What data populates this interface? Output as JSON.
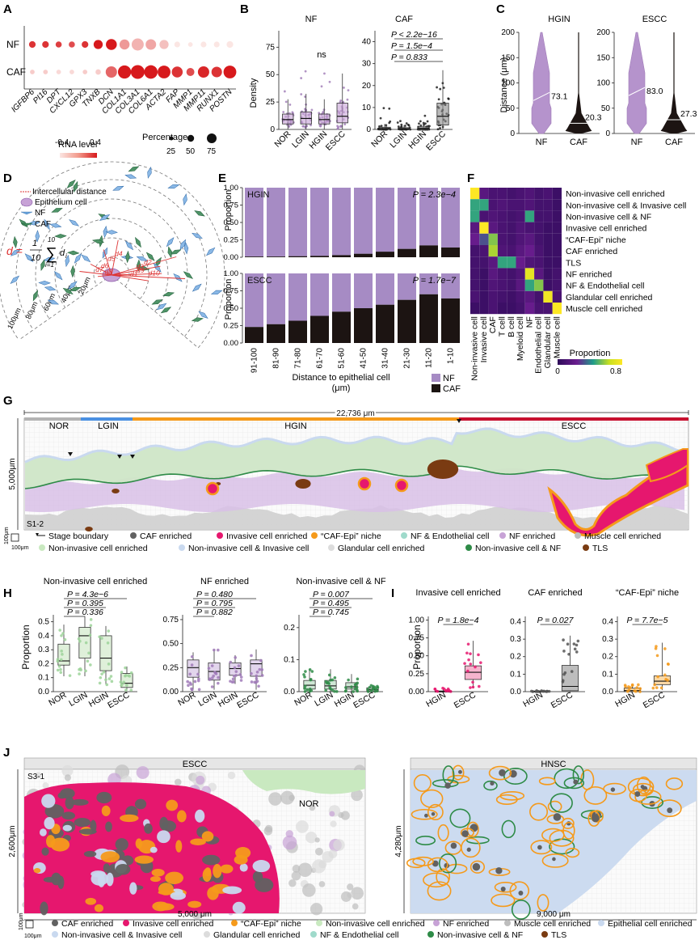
{
  "panels": {
    "A": {
      "label": "A",
      "rows": [
        "NF",
        "CAF"
      ],
      "genes": [
        "IGFBP6",
        "PI16",
        "DPT",
        "CXCL12",
        "GPX3",
        "TNXB",
        "DCN",
        "COL1A1",
        "COL3A1",
        "COL6A1",
        "ACTA2",
        "FAP",
        "MMP1",
        "MMP11",
        "RUNX1",
        "POSTN"
      ],
      "nf_level": [
        0.3,
        0.3,
        0.25,
        0.2,
        0.3,
        0.4,
        0.5,
        -0.1,
        -0.2,
        -0.15,
        -0.25,
        -0.4,
        -0.4,
        -0.4,
        -0.4,
        -0.4
      ],
      "nf_pct": [
        15,
        15,
        12,
        12,
        15,
        35,
        55,
        45,
        70,
        50,
        35,
        10,
        5,
        10,
        10,
        15
      ],
      "caf_level": [
        -0.3,
        -0.3,
        -0.35,
        -0.35,
        -0.3,
        -0.3,
        0.1,
        0.45,
        0.5,
        0.45,
        0.4,
        0.3,
        0.2,
        0.35,
        0.3,
        0.5
      ],
      "caf_pct": [
        5,
        5,
        5,
        5,
        5,
        8,
        60,
        85,
        95,
        90,
        80,
        55,
        25,
        60,
        50,
        80
      ],
      "legend_level_title": "RNA level",
      "legend_level_ticks": [
        "-0.4",
        "0.4"
      ],
      "legend_pct_title": "Percentage",
      "legend_pct_values": [
        "25",
        "50",
        "75"
      ]
    },
    "B": {
      "label": "B",
      "ylabel": "Density",
      "groups": [
        "NOR",
        "LGIN",
        "HGIN",
        "ESCC"
      ],
      "nf": {
        "title": "NF",
        "ylim": [
          0,
          90
        ],
        "ticks": [
          "0",
          "25",
          "50",
          "75"
        ],
        "medians": [
          9,
          10,
          9,
          12
        ],
        "q1": [
          5,
          5,
          5,
          6
        ],
        "q3": [
          14,
          16,
          14,
          24
        ],
        "annotation": "ns"
      },
      "caf": {
        "title": "CAF",
        "ylim": [
          0,
          45
        ],
        "ticks": [
          "0",
          "10",
          "20",
          "30",
          "40"
        ],
        "medians": [
          0.4,
          0.3,
          0.5,
          6
        ],
        "q1": [
          0,
          0,
          0,
          2
        ],
        "q3": [
          1,
          0.8,
          1.2,
          12
        ],
        "pvals": [
          "P < 2.2e−16",
          "P = 1.5e−4",
          "P = 0.833"
        ]
      }
    },
    "C": {
      "label": "C",
      "ylabel": "Distance (μm)",
      "ticks": [
        "0",
        "50",
        "100",
        "150",
        "200"
      ],
      "panels": [
        {
          "title": "HGIN",
          "nf_median": "73.1",
          "caf_median": "20.3",
          "nf_val": 73.1,
          "caf_val": 20.3
        },
        {
          "title": "ESCC",
          "nf_median": "83.0",
          "caf_median": "27.3",
          "nf_val": 83.0,
          "caf_val": 27.3
        }
      ],
      "xcats": [
        "NF",
        "CAF"
      ]
    },
    "D": {
      "label": "D",
      "legend": [
        "Intercellular distance",
        "Epithelium cell",
        "NF",
        "CAF"
      ],
      "formula_lhs": "d =",
      "rings": [
        "20μm",
        "40μm",
        "60μm",
        "80μm",
        "100μm"
      ],
      "dlabels": [
        "d1",
        "d2",
        "d3",
        "d4",
        "d5",
        "d6",
        "d7",
        "d8",
        "d9",
        "d10"
      ]
    },
    "E": {
      "label": "E",
      "ylabel": "Proportion",
      "xlabel": "Distance to epithelial cell",
      "xlabel_unit": "(μm)",
      "bins": [
        "91-100",
        "81-90",
        "71-80",
        "61-70",
        "51-60",
        "41-50",
        "31-40",
        "21-30",
        "11-20",
        "1-10"
      ],
      "hgin": {
        "title": "HGIN",
        "p": "P = 2.3e−4",
        "caf": [
          0.01,
          0.01,
          0.015,
          0.02,
          0.03,
          0.05,
          0.08,
          0.12,
          0.17,
          0.14
        ]
      },
      "escc": {
        "title": "ESCC",
        "p": "P = 1.7e−7",
        "caf": [
          0.23,
          0.27,
          0.32,
          0.39,
          0.45,
          0.5,
          0.55,
          0.62,
          0.7,
          0.64
        ]
      },
      "ticks": [
        "0.00",
        "0.25",
        "0.50",
        "0.75",
        "1.00"
      ],
      "legend": [
        "NF",
        "CAF"
      ]
    },
    "F": {
      "label": "F",
      "rows": [
        "Non-invasive cell enriched",
        "Non-invasive cell & Invasive cell",
        "Non-invasive cell & NF",
        "Invasive cell enriched",
        "“CAF-Epi” niche",
        "CAF enriched",
        "TLS",
        "NF enriched",
        "NF & Endothelial cell",
        "Glandular cell enriched",
        "Muscle cell enriched"
      ],
      "cols": [
        "Non-invasive cell",
        "Invasive cell",
        "CAF",
        "T cell",
        "B cell",
        "Myeloid cell",
        "NF",
        "Endothelial cell",
        "Glandular cell",
        "Muscle cell"
      ],
      "matrix": [
        [
          0.85,
          0.15,
          0.1,
          0.1,
          0.08,
          0.1,
          0.12,
          0.08,
          0.1,
          0.05
        ],
        [
          0.45,
          0.45,
          0.1,
          0.12,
          0.1,
          0.1,
          0.12,
          0.08,
          0.08,
          0.05
        ],
        [
          0.45,
          0.1,
          0.12,
          0.1,
          0.08,
          0.1,
          0.45,
          0.08,
          0.08,
          0.05
        ],
        [
          0.15,
          0.85,
          0.15,
          0.1,
          0.08,
          0.12,
          0.1,
          0.08,
          0.05,
          0.05
        ],
        [
          0.2,
          0.3,
          0.55,
          0.1,
          0.08,
          0.12,
          0.15,
          0.08,
          0.05,
          0.05
        ],
        [
          0.08,
          0.1,
          0.6,
          0.12,
          0.1,
          0.15,
          0.2,
          0.1,
          0.05,
          0.05
        ],
        [
          0.08,
          0.08,
          0.15,
          0.45,
          0.45,
          0.2,
          0.12,
          0.1,
          0.05,
          0.05
        ],
        [
          0.08,
          0.05,
          0.15,
          0.1,
          0.08,
          0.12,
          0.75,
          0.15,
          0.05,
          0.08
        ],
        [
          0.08,
          0.05,
          0.12,
          0.1,
          0.08,
          0.15,
          0.45,
          0.55,
          0.05,
          0.08
        ],
        [
          0.1,
          0.05,
          0.1,
          0.08,
          0.06,
          0.1,
          0.15,
          0.08,
          0.8,
          0.1
        ],
        [
          0.05,
          0.05,
          0.1,
          0.05,
          0.05,
          0.08,
          0.2,
          0.1,
          0.1,
          0.85
        ]
      ],
      "legend_title": "Proportion",
      "legend_ticks": [
        "0",
        "0.8"
      ]
    },
    "G": {
      "label": "G",
      "scale_width": "22,736 μm",
      "scale_height": "5,000μm",
      "sample": "S1-2",
      "stages": [
        "NOR",
        "LGIN",
        "HGIN",
        "ESCC"
      ],
      "scale_box": "100μm",
      "scale_box2": "100μm",
      "legend": [
        {
          "label": "Stage boundary",
          "color": "#222222"
        },
        {
          "label": "CAF enriched",
          "color": "#616161"
        },
        {
          "label": "Invasive cell enriched",
          "color": "#e6176e"
        },
        {
          "label": "“CAF-Epi” niche",
          "color": "#f59a1b"
        },
        {
          "label": "NF & Endothelial cell",
          "color": "#9fdacb"
        },
        {
          "label": "NF enriched",
          "color": "#c7a2d6"
        },
        {
          "label": "Muscle cell enriched",
          "color": "#bdbdbd"
        },
        {
          "label": "Non-invasive cell enriched",
          "color": "#c9e9c0"
        },
        {
          "label": "Non-invasive cell & Invasive cell",
          "color": "#c9d9ef"
        },
        {
          "label": "Glandular cell enriched",
          "color": "#dcdcdc"
        },
        {
          "label": "Non-invasive cell & NF",
          "color": "#2e8b47"
        },
        {
          "label": "TLS",
          "color": "#7a3b12"
        }
      ]
    },
    "H": {
      "label": "H",
      "ylabel": "Proportion",
      "groups": [
        "NOR",
        "LGIN",
        "HGIN",
        "ESCC"
      ],
      "plots": [
        {
          "title": "Non-invasive cell enriched",
          "ticks": [
            "0.0",
            "0.1",
            "0.2",
            "0.3",
            "0.4",
            "0.5"
          ],
          "ymax": 0.55,
          "pvals": [
            "P = 4.3e−6",
            "P = 0.395",
            "P = 0.336"
          ],
          "q1": [
            0.19,
            0.24,
            0.15,
            0.03
          ],
          "med": [
            0.22,
            0.4,
            0.24,
            0.06
          ],
          "q3": [
            0.34,
            0.46,
            0.4,
            0.13
          ],
          "lo": [
            0.11,
            0.11,
            0.05,
            0.01
          ],
          "hi": [
            0.48,
            0.54,
            0.47,
            0.18
          ],
          "color": "#9ed39a",
          "fill": "#dff0da"
        },
        {
          "title": "NF enriched",
          "ticks": [
            "0.00",
            "0.25",
            "0.50",
            "0.75"
          ],
          "ymax": 0.8,
          "pvals": [
            "P = 0.480",
            "P = 0.795",
            "P = 0.882"
          ],
          "q1": [
            0.15,
            0.12,
            0.17,
            0.16
          ],
          "med": [
            0.25,
            0.21,
            0.24,
            0.29
          ],
          "q3": [
            0.33,
            0.3,
            0.3,
            0.33
          ],
          "lo": [
            0.02,
            0.02,
            0.08,
            0.02
          ],
          "hi": [
            0.41,
            0.44,
            0.38,
            0.44
          ],
          "color": "#a07ab8",
          "fill": "#e2d5ec"
        },
        {
          "title": "Non-invasive cell & NF",
          "ticks": [
            "0.0",
            "0.1",
            "0.2"
          ],
          "ymax": 0.24,
          "pvals": [
            "P = 0.007",
            "P = 0.495",
            "P = 0.745"
          ],
          "q1": [
            0.008,
            0.008,
            0.008,
            0.002
          ],
          "med": [
            0.02,
            0.018,
            0.015,
            0.006
          ],
          "q3": [
            0.035,
            0.035,
            0.028,
            0.012
          ],
          "lo": [
            0,
            0,
            0,
            0
          ],
          "hi": [
            0.07,
            0.07,
            0.055,
            0.02
          ],
          "color": "#2e8b47",
          "fill": "#cfe6d5"
        }
      ]
    },
    "I": {
      "label": "I",
      "ylabel": "Proportion",
      "groups": [
        "HGIN",
        "ESCC"
      ],
      "plots": [
        {
          "title": "Invasive cell enriched",
          "ticks": [
            "0.00",
            "0.25",
            "0.50",
            "0.75",
            "1.00"
          ],
          "ymax": 1.05,
          "pval": "P = 1.8e−4",
          "q1": [
            0.0,
            0.17
          ],
          "med": [
            0.005,
            0.27
          ],
          "q3": [
            0.01,
            0.36
          ],
          "lo": [
            0,
            0.05
          ],
          "hi": [
            0.05,
            0.71
          ],
          "color": "#e6176e",
          "fill": "#f6b4cd"
        },
        {
          "title": "CAF enriched",
          "ticks": [
            "0.0",
            "0.1",
            "0.2",
            "0.3",
            "0.4"
          ],
          "ymax": 0.43,
          "pval": "P = 0.027",
          "q1": [
            0.0,
            0.005
          ],
          "med": [
            0.002,
            0.03
          ],
          "q3": [
            0.004,
            0.15
          ],
          "lo": [
            0,
            0
          ],
          "hi": [
            0.006,
            0.32
          ],
          "color": "#555555",
          "fill": "#bdbdbd"
        },
        {
          "title": "“CAF-Epi” niche",
          "ticks": [
            "0.0",
            "0.1",
            "0.2",
            "0.3",
            "0.4"
          ],
          "ymax": 0.43,
          "pval": "P = 7.7e−5",
          "q1": [
            0.0,
            0.04
          ],
          "med": [
            0.006,
            0.06
          ],
          "q3": [
            0.02,
            0.09
          ],
          "lo": [
            0,
            0.01
          ],
          "hi": [
            0.04,
            0.28
          ],
          "color": "#f59a1b",
          "fill": "#fcd9a6"
        }
      ]
    },
    "J": {
      "label": "J",
      "left_title": "ESCC",
      "left_sample": "S3-1",
      "left_nor": "NOR",
      "left_width": "5,000 μm",
      "left_height": "2,600μm",
      "right_title": "HNSC",
      "right_width": "9,000 μm",
      "right_height": "4,280μm",
      "scale_box": "100μm",
      "scale_box2": "100μm",
      "legend": [
        {
          "label": "CAF enriched",
          "color": "#616161"
        },
        {
          "label": "Invasive cell enriched",
          "color": "#e6176e"
        },
        {
          "label": "“CAF-Epi” niche",
          "color": "#f59a1b"
        },
        {
          "label": "Non-invasive cell enriched",
          "color": "#c9e9c0"
        },
        {
          "label": "NF enriched",
          "color": "#c7a2d6"
        },
        {
          "label": "Muscle cell enriched",
          "color": "#bdbdbd"
        },
        {
          "label": "Epithelial cell enriched",
          "color": "#c9d9ef"
        },
        {
          "label": "Non-invasive cell & Invasive cell",
          "color": "#c9d9ef"
        },
        {
          "label": "Glandular cell enriched",
          "color": "#dcdcdc"
        },
        {
          "label": "NF & Endothelial cell",
          "color": "#9fdacb"
        },
        {
          "label": "Non-invasive cell & NF",
          "color": "#2e8b47"
        },
        {
          "label": "TLS",
          "color": "#7a3b12"
        }
      ]
    }
  }
}
